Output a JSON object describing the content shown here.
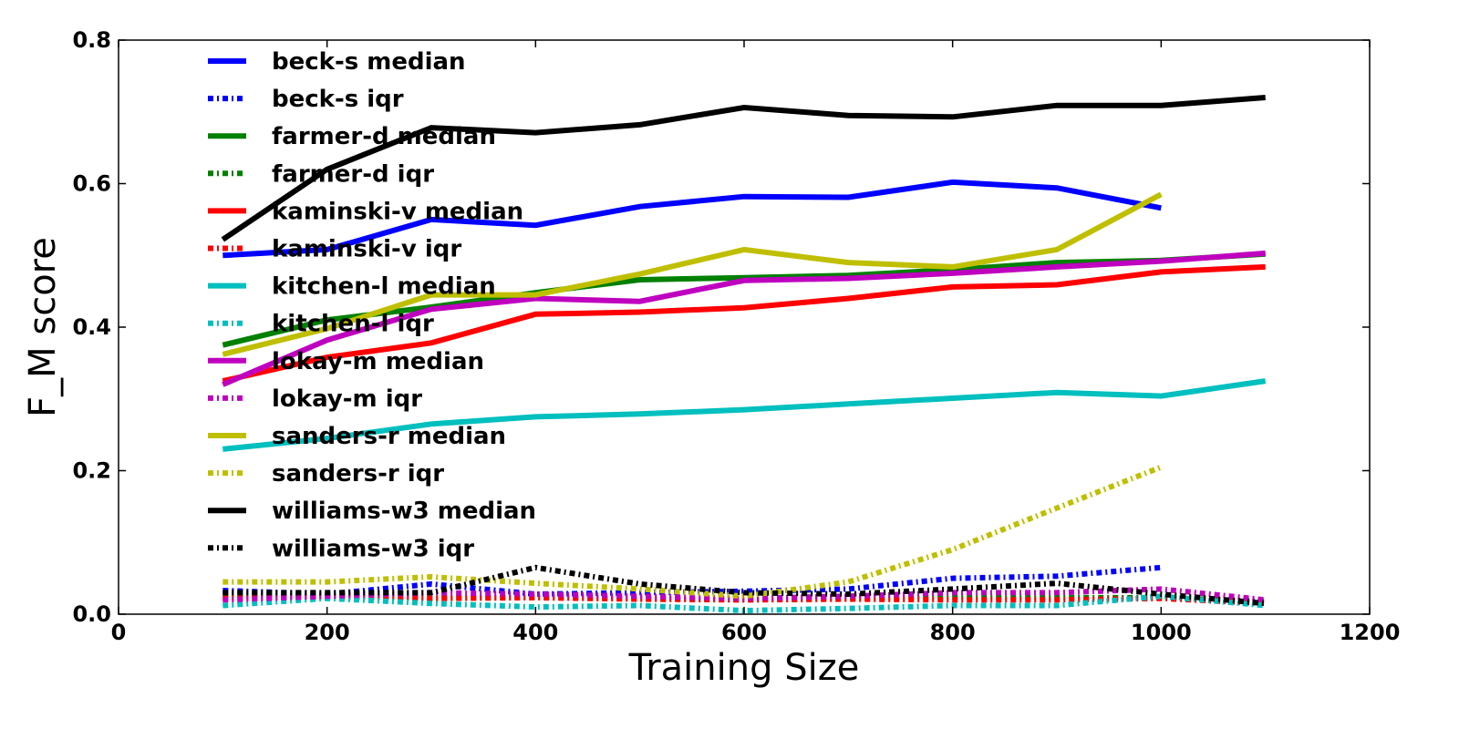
{
  "chart_data": {
    "type": "line",
    "xlabel": "Training Size",
    "ylabel": "F_M score",
    "xlim": [
      0,
      1200
    ],
    "ylim": [
      0,
      0.8
    ],
    "xticks": [
      "0",
      "200",
      "400",
      "600",
      "800",
      "1000",
      "1200"
    ],
    "yticks": [
      "0.0",
      "0.2",
      "0.4",
      "0.6",
      "0.8"
    ],
    "grid": false,
    "legend_position": "top-left",
    "series": [
      {
        "name": "beck-s median",
        "style": "solid",
        "color": "#0000ff",
        "x": [
          100,
          200,
          300,
          400,
          500,
          600,
          700,
          800,
          900,
          1000
        ],
        "y": [
          0.5,
          0.508,
          0.55,
          0.542,
          0.568,
          0.582,
          0.581,
          0.602,
          0.594,
          0.566
        ]
      },
      {
        "name": "beck-s iqr",
        "style": "dashdot",
        "color": "#0000ff",
        "x": [
          100,
          200,
          300,
          400,
          500,
          600,
          700,
          800,
          900,
          1000
        ],
        "y": [
          0.033,
          0.028,
          0.042,
          0.028,
          0.03,
          0.032,
          0.035,
          0.05,
          0.053,
          0.065
        ]
      },
      {
        "name": "farmer-d median",
        "style": "solid",
        "color": "#008000",
        "x": [
          100,
          200,
          300,
          400,
          500,
          600,
          700,
          800,
          900,
          1000,
          1100
        ],
        "y": [
          0.375,
          0.41,
          0.428,
          0.448,
          0.466,
          0.469,
          0.472,
          0.48,
          0.49,
          0.493,
          0.502
        ]
      },
      {
        "name": "farmer-d iqr",
        "style": "dashdot",
        "color": "#008000",
        "x": [
          100,
          200,
          300,
          400,
          500,
          600,
          700,
          800,
          900,
          1000,
          1100
        ],
        "y": [
          0.025,
          0.025,
          0.022,
          0.024,
          0.022,
          0.02,
          0.022,
          0.024,
          0.023,
          0.023,
          0.018
        ]
      },
      {
        "name": "kaminski-v median",
        "style": "solid",
        "color": "#ff0000",
        "x": [
          100,
          200,
          300,
          400,
          500,
          600,
          700,
          800,
          900,
          1000,
          1100
        ],
        "y": [
          0.325,
          0.358,
          0.378,
          0.418,
          0.421,
          0.427,
          0.44,
          0.456,
          0.459,
          0.477,
          0.484
        ]
      },
      {
        "name": "kaminski-v iqr",
        "style": "dashdot",
        "color": "#ff0000",
        "x": [
          100,
          200,
          300,
          400,
          500,
          600,
          700,
          800,
          900,
          1000,
          1100
        ],
        "y": [
          0.022,
          0.024,
          0.022,
          0.023,
          0.021,
          0.02,
          0.021,
          0.02,
          0.02,
          0.022,
          0.015
        ]
      },
      {
        "name": "kitchen-l median",
        "style": "solid",
        "color": "#00bfbf",
        "x": [
          100,
          200,
          300,
          400,
          500,
          600,
          700,
          800,
          900,
          1000,
          1100
        ],
        "y": [
          0.23,
          0.245,
          0.265,
          0.275,
          0.279,
          0.285,
          0.293,
          0.301,
          0.309,
          0.304,
          0.325
        ]
      },
      {
        "name": "kitchen-l iqr",
        "style": "dashdot",
        "color": "#00bfbf",
        "x": [
          100,
          200,
          300,
          400,
          500,
          600,
          700,
          800,
          900,
          1000,
          1100
        ],
        "y": [
          0.012,
          0.022,
          0.015,
          0.01,
          0.012,
          0.005,
          0.008,
          0.012,
          0.012,
          0.025,
          0.012
        ]
      },
      {
        "name": "lokay-m median",
        "style": "solid",
        "color": "#bf00bf",
        "x": [
          100,
          200,
          300,
          400,
          500,
          600,
          700,
          800,
          900,
          1000,
          1100
        ],
        "y": [
          0.32,
          0.382,
          0.425,
          0.44,
          0.436,
          0.465,
          0.468,
          0.475,
          0.484,
          0.492,
          0.503
        ]
      },
      {
        "name": "lokay-m iqr",
        "style": "dashdot",
        "color": "#bf00bf",
        "x": [
          100,
          200,
          300,
          400,
          500,
          600,
          700,
          800,
          900,
          1000,
          1100
        ],
        "y": [
          0.02,
          0.025,
          0.03,
          0.028,
          0.025,
          0.022,
          0.025,
          0.03,
          0.03,
          0.035,
          0.02
        ]
      },
      {
        "name": "sanders-r median",
        "style": "solid",
        "color": "#bfbf00",
        "x": [
          100,
          200,
          300,
          400,
          500,
          600,
          700,
          800,
          900,
          1000
        ],
        "y": [
          0.362,
          0.398,
          0.445,
          0.445,
          0.474,
          0.508,
          0.49,
          0.484,
          0.508,
          0.585
        ]
      },
      {
        "name": "sanders-r iqr",
        "style": "dashdot",
        "color": "#bfbf00",
        "x": [
          100,
          200,
          300,
          400,
          500,
          600,
          700,
          800,
          900,
          1000
        ],
        "y": [
          0.045,
          0.045,
          0.052,
          0.043,
          0.035,
          0.025,
          0.045,
          0.09,
          0.148,
          0.205
        ]
      },
      {
        "name": "williams-w3 median",
        "style": "solid",
        "color": "#000000",
        "x": [
          100,
          200,
          300,
          400,
          500,
          600,
          700,
          800,
          900,
          1000,
          1100
        ],
        "y": [
          0.522,
          0.62,
          0.678,
          0.671,
          0.682,
          0.706,
          0.695,
          0.693,
          0.709,
          0.709,
          0.72
        ]
      },
      {
        "name": "williams-w3 iqr",
        "style": "dashdot",
        "color": "#000000",
        "x": [
          100,
          200,
          300,
          400,
          500,
          600,
          700,
          800,
          900,
          1000,
          1100
        ],
        "y": [
          0.03,
          0.03,
          0.03,
          0.065,
          0.042,
          0.03,
          0.028,
          0.035,
          0.043,
          0.028,
          0.015
        ]
      }
    ]
  }
}
